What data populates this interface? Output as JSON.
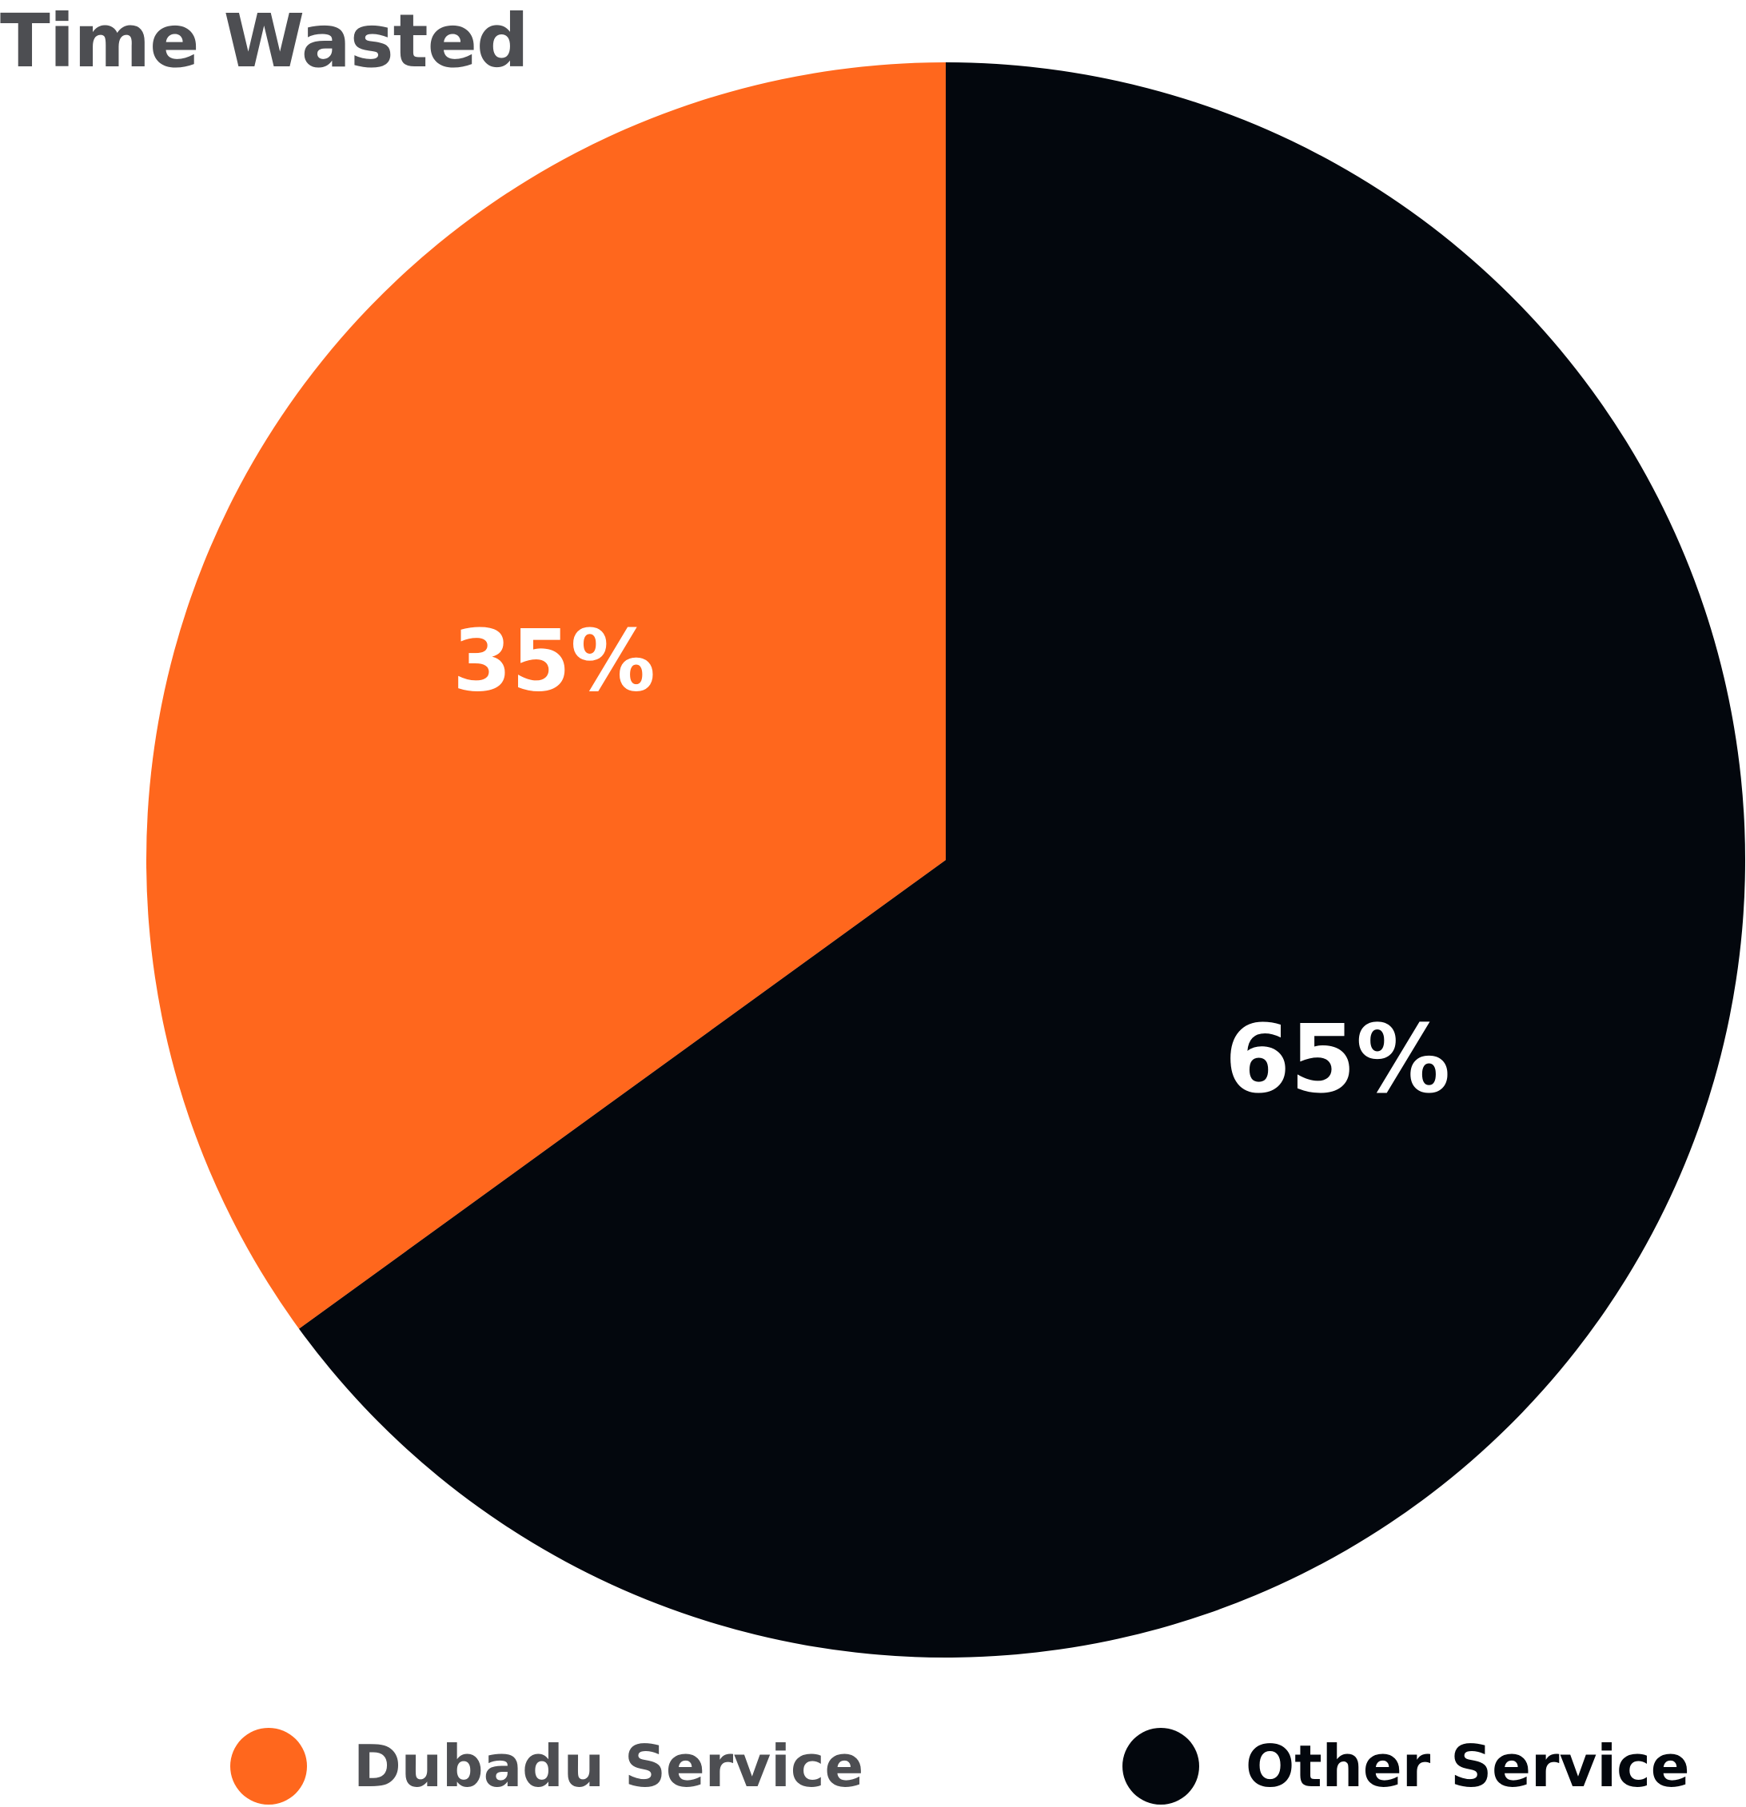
{
  "chart_data": {
    "type": "pie",
    "title": "Time Wasted",
    "slices": [
      {
        "name": "Dubadu Service",
        "value": 35,
        "label": "35%",
        "color": "#ff671d",
        "label_color": "#ffffff",
        "legend_text_color": "#4d4e52"
      },
      {
        "name": "Other Service",
        "value": 65,
        "label": "65%",
        "color": "#03070d",
        "label_color": "#ffffff",
        "legend_text_color": "#03070d"
      }
    ],
    "start": "top, clockwise",
    "legend_position": "bottom"
  }
}
